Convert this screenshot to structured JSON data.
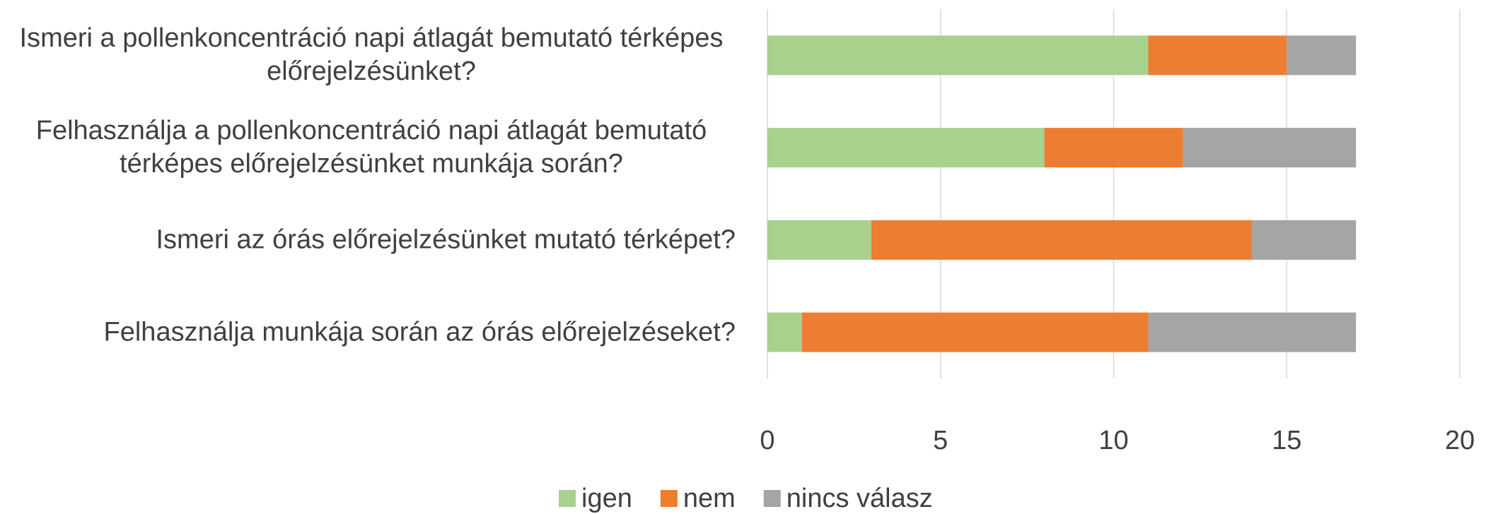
{
  "chart_data": {
    "type": "stacked-bar-horizontal",
    "categories": [
      "Ismeri a pollenkoncentráció napi átlagát bemutató térképes előrejelzésünket?",
      "Felhasználja a pollenkoncentráció napi átlagát bemutató térképes előrejelzésünket munkája során?",
      "Ismeri az órás előrejelzésünket mutató térképet?",
      "Felhasználja munkája során az órás előrejelzéseket?"
    ],
    "series": [
      {
        "name": "igen",
        "color": "#a9d18e",
        "values": [
          11,
          8,
          3,
          1
        ]
      },
      {
        "name": "nem",
        "color": "#ed7d31",
        "values": [
          4,
          4,
          11,
          10
        ]
      },
      {
        "name": "nincs válasz",
        "color": "#a5a5a5",
        "values": [
          2,
          5,
          3,
          6
        ]
      }
    ],
    "xlim": [
      0,
      20
    ],
    "xticks": [
      0,
      5,
      10,
      15,
      20
    ],
    "grid": true,
    "legend": "bottom"
  }
}
